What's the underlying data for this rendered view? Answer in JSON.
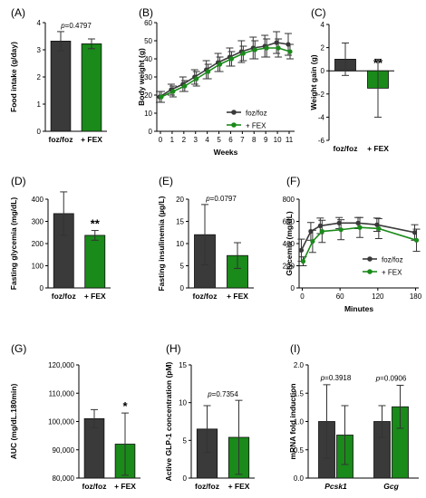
{
  "colors": {
    "dark": "#3a3a3a",
    "green": "#1a8a1a",
    "axis": "#000000"
  },
  "chart_data": [
    {
      "panel": "(A)",
      "type": "bar",
      "ylabel": "Food intake (g/day)",
      "ylim": [
        0,
        4
      ],
      "yticks": [
        0,
        1,
        2,
        3,
        4
      ],
      "categories": [
        "foz/foz",
        "+ FEX"
      ],
      "values": [
        3.32,
        3.22
      ],
      "errors": [
        0.35,
        0.18
      ],
      "annotation": "p=0.4797",
      "stars": ""
    },
    {
      "panel": "(B)",
      "type": "line",
      "xlabel": "Weeks",
      "ylabel": "Body weight (g)",
      "ylim": [
        0,
        60
      ],
      "yticks": [
        0,
        10,
        20,
        30,
        40,
        50,
        60
      ],
      "x": [
        0,
        1,
        2,
        3,
        4,
        5,
        6,
        7,
        8,
        9,
        10,
        11
      ],
      "series": [
        {
          "name": "foz/foz",
          "values": [
            19,
            23,
            26,
            30,
            34,
            38,
            41,
            44,
            46,
            47,
            49,
            48
          ],
          "errors": [
            3,
            3,
            4,
            4,
            5,
            5,
            5,
            6,
            6,
            6,
            6,
            6
          ]
        },
        {
          "name": "+ FEX",
          "values": [
            19,
            22,
            25,
            29,
            33,
            37,
            40,
            43,
            45,
            46,
            46,
            44
          ],
          "errors": [
            3,
            3,
            3,
            4,
            4,
            4,
            4,
            4,
            5,
            5,
            5,
            4
          ]
        }
      ]
    },
    {
      "panel": "(C)",
      "type": "bar",
      "ylabel": "Weight gain (g)",
      "ylim": [
        -6,
        4
      ],
      "yticks": [
        -6,
        -4,
        -2,
        0,
        2,
        4
      ],
      "categories": [
        "foz/foz",
        "+ FEX"
      ],
      "values": [
        1.0,
        -1.5
      ],
      "errors": [
        1.4,
        2.5
      ],
      "annotation": "",
      "stars": "**"
    },
    {
      "panel": "(D)",
      "type": "bar",
      "ylabel": "Fasting glycemia (mg/dL)",
      "ylim": [
        0,
        400
      ],
      "yticks": [
        0,
        100,
        200,
        300,
        400
      ],
      "categories": [
        "foz/foz",
        "+ FEX"
      ],
      "values": [
        335,
        237
      ],
      "errors": [
        98,
        22
      ],
      "annotation": "",
      "stars": "**"
    },
    {
      "panel": "(E)",
      "type": "bar",
      "ylabel": "Fasting insulinemia (µg/L)",
      "ylim": [
        0,
        20
      ],
      "yticks": [
        0,
        5,
        10,
        15,
        20
      ],
      "categories": [
        "foz/foz",
        "+ FEX"
      ],
      "values": [
        12.0,
        7.3
      ],
      "errors": [
        6.8,
        2.9
      ],
      "annotation": "p=0.0797",
      "stars": ""
    },
    {
      "panel": "(F)",
      "type": "line",
      "xlabel": "Minutes",
      "ylabel": "Glycemia (mg/dL)",
      "ylim": [
        0,
        800
      ],
      "yticks": [
        0,
        200,
        400,
        600,
        800
      ],
      "xlim": [
        -5,
        185
      ],
      "xticks": [
        0,
        60,
        120,
        180
      ],
      "x": [
        0,
        15,
        30,
        60,
        90,
        120,
        180
      ],
      "series": [
        {
          "name": "foz/foz",
          "values": [
            340,
            510,
            560,
            585,
            585,
            570,
            500
          ],
          "errors": [
            100,
            80,
            70,
            50,
            50,
            60,
            70
          ]
        },
        {
          "name": "+ FEX",
          "values": [
            240,
            420,
            510,
            525,
            545,
            535,
            430
          ],
          "errors": [
            40,
            100,
            100,
            90,
            90,
            90,
            100
          ]
        }
      ]
    },
    {
      "panel": "(G)",
      "type": "bar",
      "ylabel": "AUC (mg/dL.180min)",
      "ylim": [
        80000,
        120000
      ],
      "yticks": [
        80000,
        90000,
        100000,
        110000,
        120000
      ],
      "ytick_labels": [
        "80,000",
        "90,000",
        "100,000",
        "110,000",
        "120,000"
      ],
      "categories": [
        "foz/foz",
        "+ FEX"
      ],
      "values": [
        101000,
        92000
      ],
      "errors": [
        3200,
        11000
      ],
      "annotation": "",
      "stars": "*"
    },
    {
      "panel": "(H)",
      "type": "bar",
      "ylabel": "Active GLP-1 concentration (pM)",
      "ylim": [
        0,
        15
      ],
      "yticks": [
        0,
        5,
        10,
        15
      ],
      "categories": [
        "foz/foz",
        "+ FEX"
      ],
      "values": [
        6.5,
        5.4
      ],
      "errors": [
        3.1,
        4.9
      ],
      "annotation": "p=0.7354",
      "stars": ""
    },
    {
      "panel": "(I)",
      "type": "bar",
      "ylabel": "mRNA fold induction",
      "ylim": [
        0,
        2.0
      ],
      "yticks": [
        0,
        0.5,
        1.0,
        1.5,
        2.0
      ],
      "ytick_labels": [
        "0.0",
        "0.5",
        "1.0",
        "1.5",
        "2.0"
      ],
      "categories": [
        "Pcsk1",
        "Gcg"
      ],
      "series": [
        {
          "name": "foz/foz",
          "values": [
            1.0,
            1.0
          ],
          "errors": [
            0.65,
            0.28
          ]
        },
        {
          "name": "+ FEX",
          "values": [
            0.76,
            1.26
          ],
          "errors": [
            0.52,
            0.38
          ]
        }
      ],
      "annotations": [
        "p=0.3918",
        "p=0.0906"
      ]
    }
  ]
}
